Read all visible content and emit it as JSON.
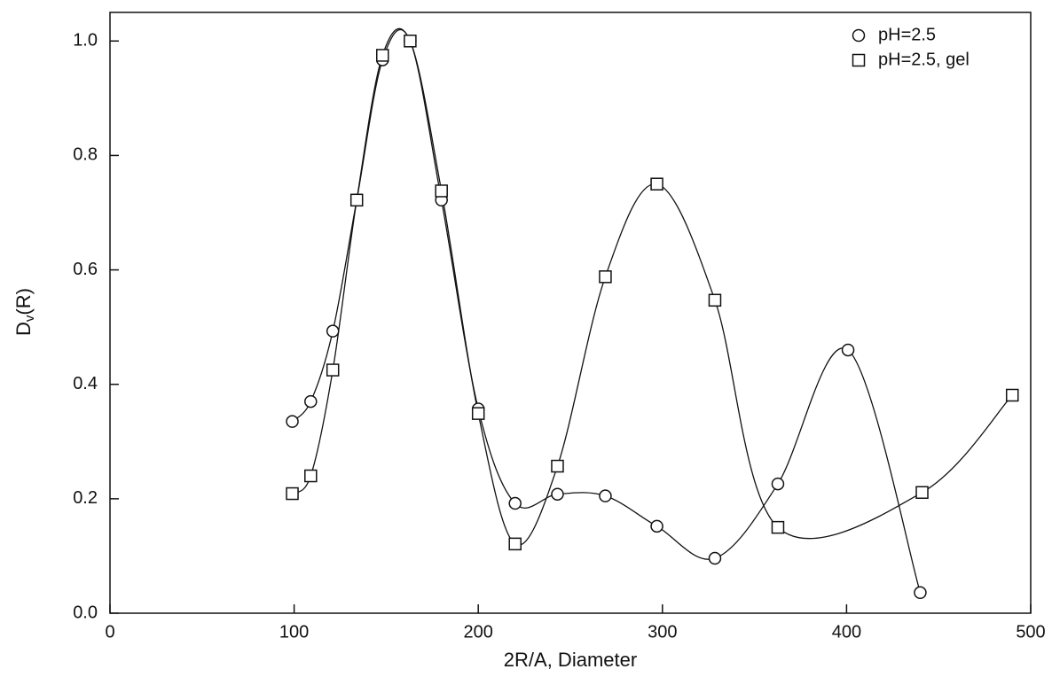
{
  "chart_data": {
    "type": "line",
    "xlabel": "2R/A, Diameter",
    "ylabel": [
      "D",
      "v",
      "(R)"
    ],
    "xlim": [
      0,
      500
    ],
    "ylim": [
      0,
      1.05
    ],
    "xticks": [
      0,
      100,
      200,
      300,
      400,
      500
    ],
    "yticks": [
      {
        "value": 0,
        "label": "0.0"
      },
      0.2,
      0.4,
      0.6,
      0.8,
      {
        "value": 1,
        "label": "1.0"
      }
    ],
    "legend": "top-right",
    "series": [
      {
        "name": "pH=2.5",
        "marker": "circle",
        "color": "#111111",
        "x": [
          99,
          109,
          121,
          134,
          148,
          163,
          180,
          200,
          220,
          243,
          269,
          297,
          328.5,
          362.7,
          400.8,
          440
        ],
        "values": [
          0.335,
          0.37,
          0.493,
          0.722,
          0.967,
          1.0,
          0.722,
          0.357,
          0.192,
          0.208,
          0.205,
          0.152,
          0.096,
          0.226,
          0.46,
          0.036
        ]
      },
      {
        "name": "pH=2.5, gel",
        "marker": "square",
        "color": "#111111",
        "x": [
          99,
          109,
          121,
          134,
          148,
          163,
          180,
          200,
          220,
          243,
          269,
          297,
          328.5,
          362.7,
          441,
          490
        ],
        "values": [
          0.209,
          0.24,
          0.425,
          0.722,
          0.975,
          1.0,
          0.738,
          0.349,
          0.121,
          0.257,
          0.588,
          0.75,
          0.547,
          0.15,
          0.211,
          0.381
        ]
      }
    ]
  }
}
